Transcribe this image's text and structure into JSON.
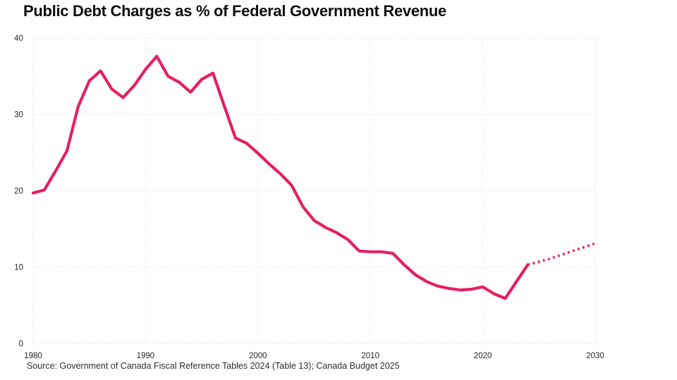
{
  "title": "Public Debt Charges as % of Federal Government Revenue",
  "source": "Source: Government of Canada Fiscal Reference Tables 2024 (Table 13); Canada Budget 2025",
  "colors": {
    "line": "#e61e63",
    "grid": "#dbdbdb",
    "title_text": "#0d0d0d",
    "axis_text": "#262626",
    "source_text": "#2e2e2e",
    "background": "#ffffff"
  },
  "chart_data": {
    "type": "line",
    "title": "Public Debt Charges as % of Federal Government Revenue",
    "xlabel": "",
    "ylabel": "",
    "xlim": [
      1980,
      2030
    ],
    "ylim": [
      0,
      40
    ],
    "x_ticks": [
      1980,
      1990,
      2000,
      2010,
      2020,
      2030
    ],
    "y_ticks": [
      0,
      10,
      20,
      30,
      40
    ],
    "grid": true,
    "legend": false,
    "series": [
      {
        "name": "actual",
        "style": "solid",
        "x": [
          1980,
          1981,
          1982,
          1983,
          1984,
          1985,
          1986,
          1987,
          1988,
          1989,
          1990,
          1991,
          1992,
          1993,
          1994,
          1995,
          1996,
          1997,
          1998,
          1999,
          2000,
          2001,
          2002,
          2003,
          2004,
          2005,
          2006,
          2007,
          2008,
          2009,
          2010,
          2011,
          2012,
          2013,
          2014,
          2015,
          2016,
          2017,
          2018,
          2019,
          2020,
          2021,
          2022,
          2023,
          2024
        ],
        "values": [
          19.7,
          20.1,
          22.6,
          25.2,
          31.0,
          34.4,
          35.7,
          33.3,
          32.2,
          33.8,
          35.9,
          37.6,
          35.0,
          34.2,
          32.9,
          34.6,
          35.4,
          31.1,
          26.9,
          26.2,
          24.9,
          23.5,
          22.2,
          20.7,
          17.9,
          16.1,
          15.2,
          14.5,
          13.6,
          12.1,
          12.0,
          12.0,
          11.8,
          10.3,
          9.0,
          8.1,
          7.5,
          7.2,
          7.0,
          7.1,
          7.4,
          6.5,
          5.9,
          8.1,
          10.3
        ]
      },
      {
        "name": "projected",
        "style": "dotted",
        "x": [
          2024,
          2025,
          2026,
          2027,
          2028,
          2029,
          2030
        ],
        "values": [
          10.3,
          10.7,
          11.1,
          11.6,
          12.1,
          12.6,
          13.1
        ]
      }
    ]
  }
}
